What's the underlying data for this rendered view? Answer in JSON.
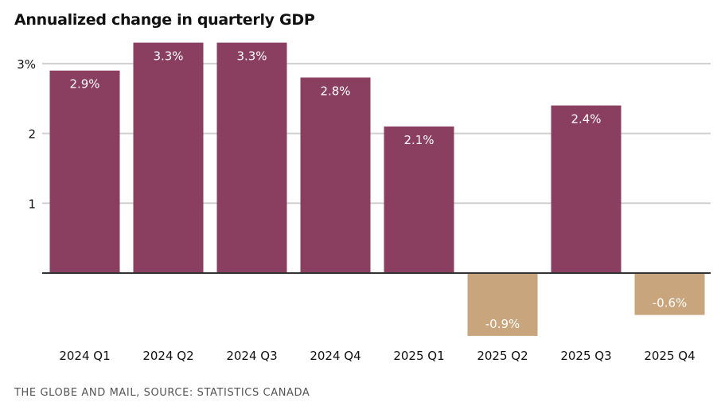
{
  "chart_data": {
    "type": "bar",
    "title": "Annualized change in quarterly GDP",
    "xlabel": "",
    "ylabel": "",
    "categories": [
      "2024 Q1",
      "2024 Q2",
      "2024 Q3",
      "2024 Q4",
      "2025 Q1",
      "2025 Q2",
      "2025 Q3",
      "2025 Q4"
    ],
    "values": [
      2.9,
      3.3,
      3.3,
      2.8,
      2.1,
      -0.9,
      2.4,
      -0.6
    ],
    "data_labels": [
      "2.9%",
      "3.3%",
      "3.3%",
      "2.8%",
      "2.1%",
      "-0.9%",
      "2.4%",
      "-0.6%"
    ],
    "ylim": [
      -0.95,
      3.45
    ],
    "yticks": [
      1,
      2,
      3
    ],
    "ytick_labels": [
      "1",
      "2",
      "3%"
    ],
    "grid": true,
    "colors": {
      "positive": "#8a3f61",
      "negative": "#c8a57c",
      "grid": "#d0d0d0",
      "baseline": "#333333"
    }
  },
  "source": "THE GLOBE AND MAIL, SOURCE: STATISTICS CANADA"
}
